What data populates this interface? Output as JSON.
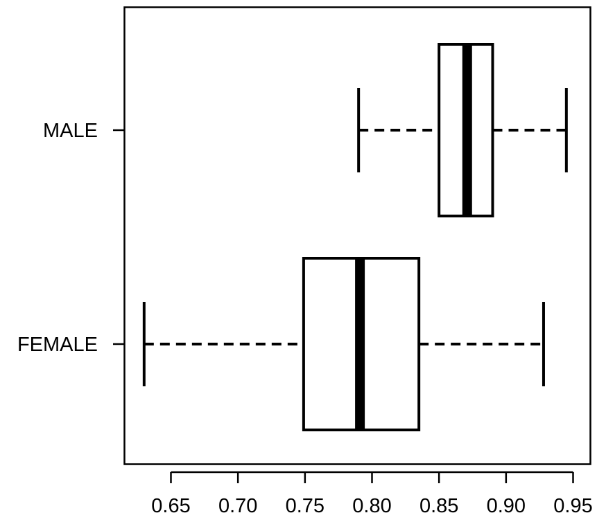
{
  "chart_data": {
    "type": "boxplot",
    "orientation": "horizontal",
    "title": "",
    "xlabel": "",
    "ylabel": "",
    "xlim": [
      0.622,
      0.95
    ],
    "x_ticks": [
      0.65,
      0.7,
      0.75,
      0.8,
      0.85,
      0.9,
      0.95
    ],
    "x_tick_labels": [
      "0.65",
      "0.70",
      "0.75",
      "0.80",
      "0.85",
      "0.90",
      "0.95"
    ],
    "categories": [
      "FEMALE",
      "MALE"
    ],
    "boxes": [
      {
        "category": "FEMALE",
        "min": 0.63,
        "q1": 0.749,
        "median": 0.791,
        "q3": 0.835,
        "max": 0.928
      },
      {
        "category": "MALE",
        "min": 0.79,
        "q1": 0.85,
        "median": 0.871,
        "q3": 0.89,
        "max": 0.945
      }
    ],
    "grid": false,
    "legend": "none"
  }
}
